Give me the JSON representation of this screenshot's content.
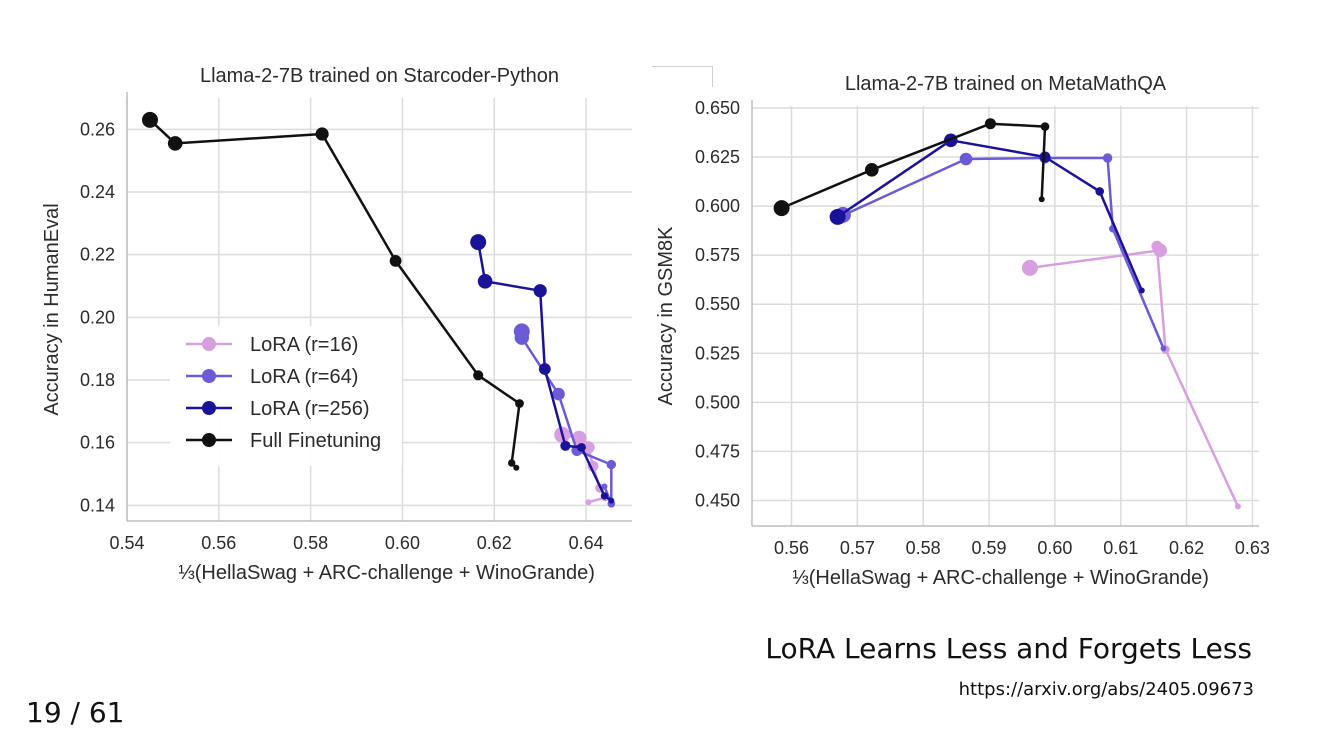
{
  "slide": {
    "caption_title": "LoRA Learns Less and Forgets Less",
    "caption_url": "https://arxiv.org/abs/2405.09673",
    "page_number": "19 / 61"
  },
  "colors": {
    "lora16": "#d89fe0",
    "lora64": "#6c5bd6",
    "lora256": "#1b129a",
    "full": "#111111",
    "grid": "#dcdcdc",
    "axis": "#bdbdbd"
  },
  "chart_data": [
    {
      "type": "line",
      "title": "Llama-2-7B trained on Starcoder-Python",
      "xlabel": "⅓(HellaSwag + ARC-challenge + WinoGrande)",
      "ylabel": "Accuracy in HumanEval",
      "xlim": [
        0.54,
        0.65
      ],
      "ylim": [
        0.135,
        0.27
      ],
      "xticks": [
        0.54,
        0.56,
        0.58,
        0.6,
        0.62,
        0.64
      ],
      "xtick_labels": [
        "0.54",
        "0.56",
        "0.58",
        "0.60",
        "0.62",
        "0.64"
      ],
      "yticks": [
        0.14,
        0.16,
        0.18,
        0.2,
        0.22,
        0.24,
        0.26
      ],
      "ytick_labels": [
        "0.14",
        "0.16",
        "0.18",
        "0.20",
        "0.22",
        "0.24",
        "0.26"
      ],
      "grid": true,
      "legend": "center-left",
      "series": [
        {
          "name": "LoRA (r=16)",
          "color": "#d89fe0",
          "x": [
            0.6348,
            0.6385,
            0.6405,
            0.6415,
            0.643,
            0.6442,
            0.6405
          ],
          "y": [
            0.1625,
            0.1615,
            0.1585,
            0.1525,
            0.1455,
            0.1425,
            0.141
          ]
        },
        {
          "name": "LoRA (r=64)",
          "color": "#6c5bd6",
          "x": [
            0.626,
            0.626,
            0.634,
            0.638,
            0.6455,
            0.6455,
            0.644
          ],
          "y": [
            0.1955,
            0.1935,
            0.1755,
            0.1575,
            0.153,
            0.1405,
            0.146
          ]
        },
        {
          "name": "LoRA (r=256)",
          "color": "#1b129a",
          "x": [
            0.6165,
            0.618,
            0.63,
            0.631,
            0.6355,
            0.639,
            0.644,
            0.6455
          ],
          "y": [
            0.224,
            0.2115,
            0.2085,
            0.1835,
            0.159,
            0.1585,
            0.143,
            0.1415
          ]
        },
        {
          "name": "Full Finetuning",
          "color": "#111111",
          "x": [
            0.545,
            0.5505,
            0.5825,
            0.5985,
            0.6165,
            0.6255,
            0.6238,
            0.6248
          ],
          "y": [
            0.263,
            0.2555,
            0.2585,
            0.218,
            0.1815,
            0.1725,
            0.1535,
            0.152
          ]
        }
      ]
    },
    {
      "type": "line",
      "title": "Llama-2-7B trained on MetaMathQA",
      "xlabel": "⅓(HellaSwag + ARC-challenge + WinoGrande)",
      "ylabel": "Accuracy in GSM8K",
      "xlim": [
        0.554,
        0.631
      ],
      "ylim": [
        0.437,
        0.651
      ],
      "xticks": [
        0.56,
        0.57,
        0.58,
        0.59,
        0.6,
        0.61,
        0.62,
        0.63
      ],
      "xtick_labels": [
        "0.56",
        "0.57",
        "0.58",
        "0.59",
        "0.60",
        "0.61",
        "0.62",
        "0.63"
      ],
      "yticks": [
        0.45,
        0.475,
        0.5,
        0.525,
        0.55,
        0.575,
        0.6,
        0.625,
        0.65
      ],
      "ytick_labels": [
        "0.450",
        "0.475",
        "0.500",
        "0.525",
        "0.550",
        "0.575",
        "0.600",
        "0.625",
        "0.650"
      ],
      "grid": true,
      "legend": "none",
      "series": [
        {
          "name": "LoRA (r=16)",
          "color": "#d89fe0",
          "x": [
            0.5962,
            0.616,
            0.6155,
            0.6168,
            0.6278
          ],
          "y": [
            0.5685,
            0.5775,
            0.5795,
            0.527,
            0.447
          ]
        },
        {
          "name": "LoRA (r=64)",
          "color": "#6c5bd6",
          "x": [
            0.5678,
            0.5673,
            0.5865,
            0.5985,
            0.608,
            0.6088,
            0.6165
          ],
          "y": [
            0.5955,
            0.5945,
            0.624,
            0.6245,
            0.6245,
            0.5885,
            0.5275
          ]
        },
        {
          "name": "LoRA (r=256)",
          "color": "#1b129a",
          "x": [
            0.567,
            0.5842,
            0.5985,
            0.6068,
            0.6132
          ],
          "y": [
            0.5945,
            0.6335,
            0.625,
            0.6075,
            0.557
          ]
        },
        {
          "name": "Full Finetuning",
          "color": "#111111",
          "x": [
            0.5585,
            0.5722,
            0.5902,
            0.5985,
            0.598
          ],
          "y": [
            0.599,
            0.6185,
            0.642,
            0.6405,
            0.6035
          ]
        }
      ]
    }
  ]
}
